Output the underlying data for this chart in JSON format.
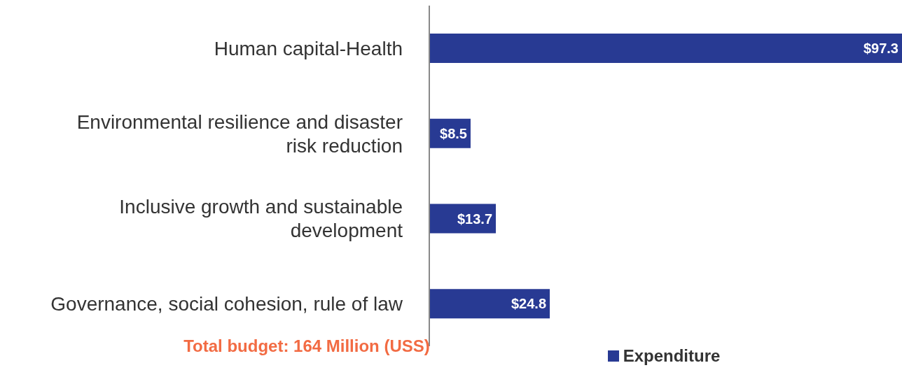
{
  "chart_data": {
    "type": "bar",
    "orientation": "horizontal",
    "categories": [
      "Human capital-Health",
      "Environmental resilience and disaster risk reduction",
      "Inclusive growth and sustainable development",
      "Governance, social cohesion, rule of law"
    ],
    "series": [
      {
        "name": "Expenditure",
        "color": "#283a93",
        "values": [
          97.3,
          8.5,
          13.7,
          24.8
        ],
        "value_labels": [
          "$97.3",
          "$8.5",
          "$13.7",
          "$24.8"
        ]
      }
    ],
    "legend": "bottom",
    "annotations": [
      "Total budget: 164 Million (USS)"
    ]
  }
}
